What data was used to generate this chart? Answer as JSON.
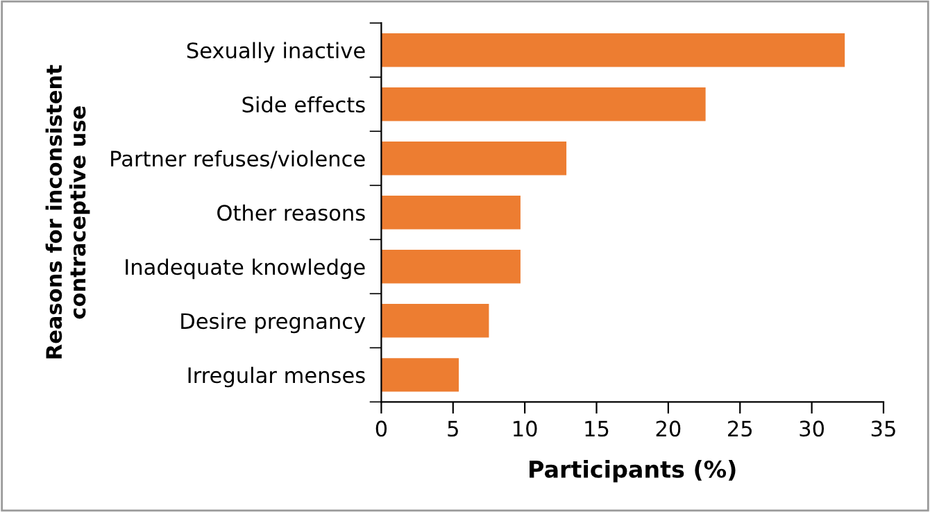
{
  "chart_data": {
    "type": "bar",
    "orientation": "horizontal",
    "xlabel": "Participants (%)",
    "ylabel": "Reasons for inconsistent\ncontraceptive use",
    "categories": [
      "Sexually inactive",
      "Side effects",
      "Partner refuses/violence",
      "Other reasons",
      "Inadequate knowledge",
      "Desire pregnancy",
      "Irregular menses"
    ],
    "values": [
      32.3,
      22.6,
      12.9,
      9.7,
      9.7,
      7.5,
      5.4
    ],
    "color": "#ed7d31",
    "xlim": [
      0,
      35
    ],
    "xticks": [
      0,
      5,
      10,
      15,
      20,
      25,
      30,
      35
    ],
    "grid": false,
    "legend": false
  }
}
